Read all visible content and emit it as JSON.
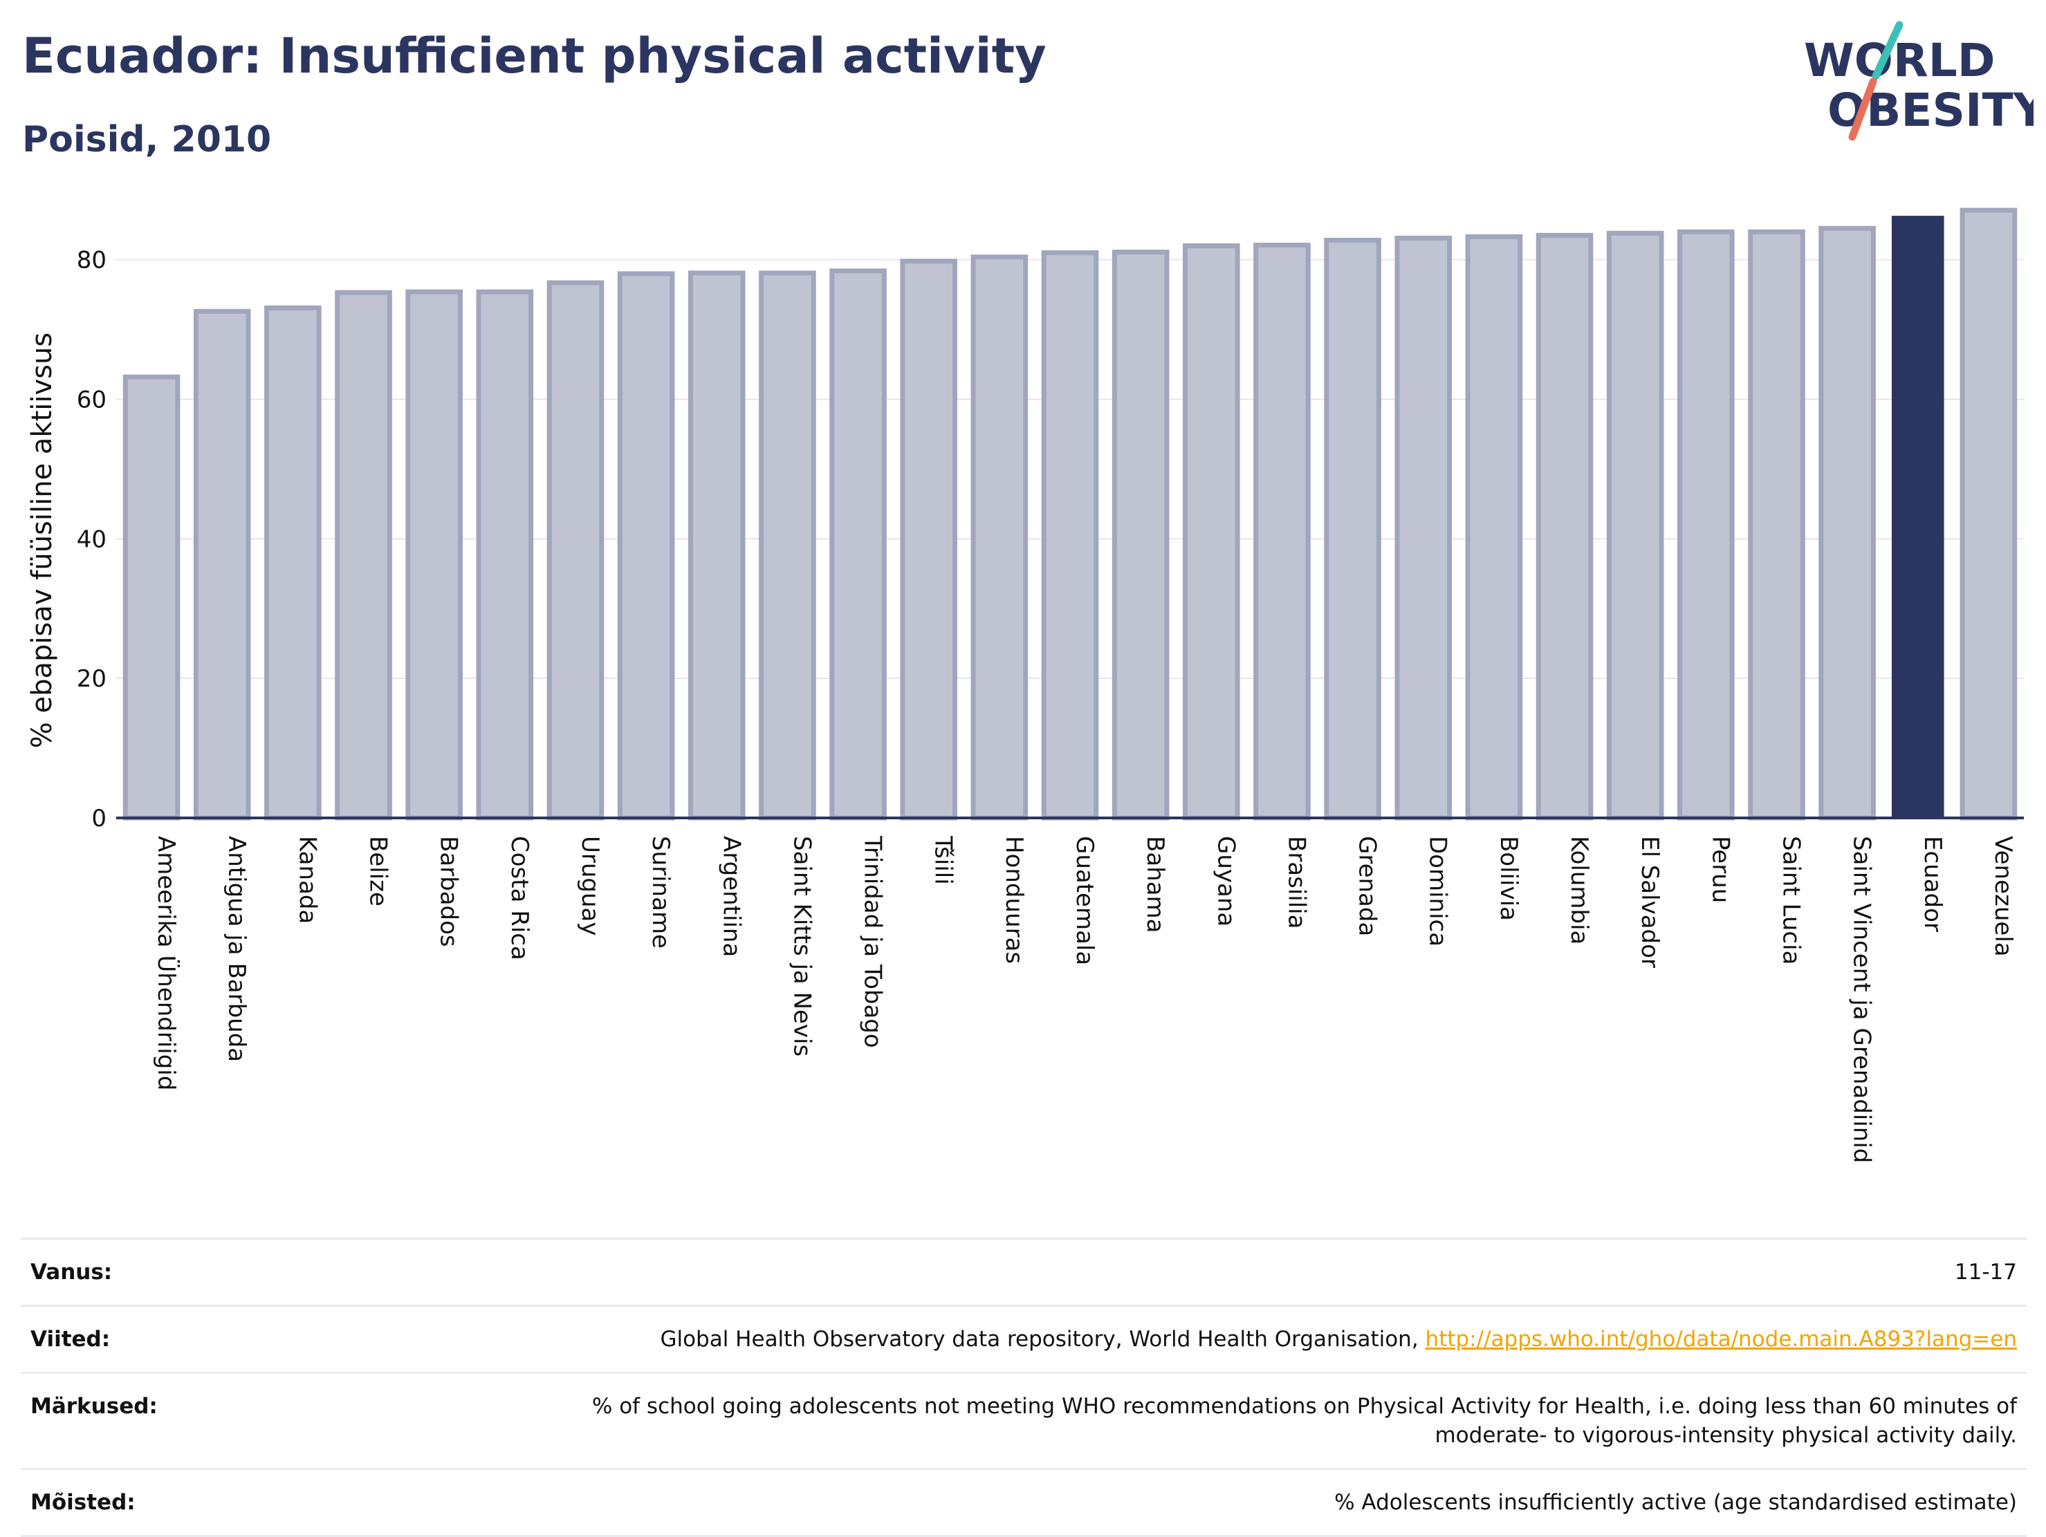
{
  "header": {
    "title": "Ecuador: Insufficient physical activity",
    "subtitle": "Poisid, 2010"
  },
  "logo": {
    "line1": "WORLD",
    "line2": "OBESITY",
    "colors": {
      "text": "#2b3660",
      "accent_teal": "#3cc0b8",
      "accent_red": "#e8705a"
    }
  },
  "chart_data": {
    "type": "bar",
    "ylabel": "% ebapisav füüsiline aktiivsus",
    "ylim": [
      0,
      87.5
    ],
    "yticks": [
      0,
      20,
      40,
      60,
      80
    ],
    "grid": true,
    "categories": [
      "Ameerika Ühendriigid",
      "Antigua ja Barbuda",
      "Kanada",
      "Belize",
      "Barbados",
      "Costa Rica",
      "Uruguay",
      "Suriname",
      "Argentiina",
      "Saint Kitts ja Nevis",
      "Trinidad ja Tobago",
      "Tšiili",
      "Honduuras",
      "Guatemala",
      "Bahama",
      "Guyana",
      "Brasiilia",
      "Grenada",
      "Dominica",
      "Boliivia",
      "Kolumbia",
      "El Salvador",
      "Peruu",
      "Saint Lucia",
      "Saint Vincent ja Grenadiinid",
      "Ecuador",
      "Venezuela"
    ],
    "values": [
      63.2,
      72.6,
      73.1,
      75.3,
      75.4,
      75.4,
      76.7,
      78.0,
      78.1,
      78.1,
      78.4,
      79.8,
      80.4,
      81.0,
      81.1,
      82.0,
      82.1,
      82.8,
      83.1,
      83.3,
      83.5,
      83.8,
      84.0,
      84.0,
      84.5,
      86.3,
      87.1
    ],
    "highlight": "Ecuador",
    "colors": {
      "bar": "#c0c4d2",
      "bar_edge": "#a0a6bc",
      "highlight": "#2b3660",
      "axis": "#2b3660",
      "grid": "#e4e6ee"
    }
  },
  "meta": {
    "age_label": "Vanus:",
    "age_value": "11-17",
    "refs_label": "Viited:",
    "refs_text": "Global Health Observatory data repository, World Health Organisation, ",
    "refs_link": "http://apps.who.int/gho/data/node.main.A893?lang=en",
    "notes_label": "Märkused:",
    "notes_line1": "% of school going adolescents not meeting WHO recommendations on Physical Activity for Health, i.e. doing less than 60 minutes of",
    "notes_line2": "moderate- to vigorous-intensity physical activity daily.",
    "defs_label": "Mõisted:",
    "defs_value": "% Adolescents insufficiently active (age standardised estimate)"
  }
}
